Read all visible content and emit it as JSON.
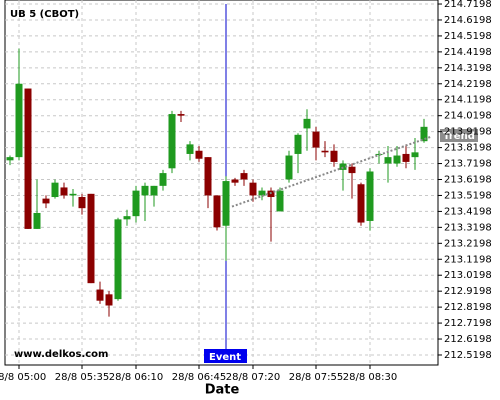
{
  "chart_data": {
    "type": "candlestick",
    "title": "UB 5 (CBOT)",
    "x_label": "Date",
    "watermark": "www.delkos.com",
    "up_color": "#1f9a1f",
    "down_color": "#8b0000",
    "grid": true,
    "categories": [
      null,
      "28/8 05:00",
      null,
      null,
      null,
      null,
      null,
      null,
      "28/8 05:35",
      null,
      null,
      null,
      null,
      null,
      "28/8 06:10",
      null,
      null,
      null,
      null,
      null,
      null,
      "28/8 06:45",
      null,
      null,
      null,
      null,
      null,
      "28/8 07:20",
      null,
      null,
      null,
      null,
      null,
      null,
      "28/8 07:55",
      null,
      null,
      null,
      null,
      null,
      "28/8 08:30",
      null,
      null,
      null,
      null,
      null,
      null
    ],
    "open": [
      213.74,
      213.76,
      214.19,
      213.31,
      213.5,
      213.51,
      213.57,
      213.52,
      213.51,
      213.53,
      212.93,
      212.9,
      212.87,
      213.37,
      213.39,
      213.52,
      213.52,
      213.58,
      213.69,
      214.03,
      213.78,
      213.8,
      213.76,
      213.52,
      213.33,
      213.62,
      213.66,
      213.6,
      213.52,
      213.55,
      213.42,
      213.62,
      213.78,
      213.94,
      213.92,
      213.8,
      213.8,
      213.68,
      213.7,
      213.59,
      213.36,
      213.78,
      213.72,
      213.72,
      213.78,
      213.76,
      213.86
    ],
    "high": [
      213.77,
      214.44,
      214.19,
      213.62,
      213.52,
      213.62,
      213.6,
      213.56,
      213.53,
      213.53,
      212.98,
      212.92,
      213.38,
      213.43,
      213.58,
      213.6,
      213.58,
      213.68,
      214.05,
      214.05,
      213.86,
      213.83,
      213.76,
      213.52,
      213.64,
      213.63,
      213.68,
      213.62,
      213.57,
      213.57,
      213.57,
      213.8,
      213.91,
      214.06,
      213.95,
      213.86,
      213.84,
      213.74,
      213.72,
      213.6,
      213.69,
      213.8,
      213.83,
      213.83,
      213.84,
      213.88,
      214.0
    ],
    "low": [
      213.71,
      213.74,
      213.31,
      213.31,
      213.44,
      213.5,
      213.5,
      213.45,
      213.4,
      212.97,
      212.84,
      212.76,
      212.86,
      213.33,
      213.35,
      213.36,
      213.45,
      213.55,
      213.66,
      213.98,
      213.74,
      213.73,
      213.44,
      213.3,
      213.11,
      213.58,
      213.58,
      213.48,
      213.49,
      213.23,
      213.42,
      213.6,
      213.66,
      213.8,
      213.74,
      213.76,
      213.7,
      213.55,
      213.5,
      213.33,
      213.3,
      213.72,
      213.6,
      213.7,
      213.69,
      213.68,
      213.85
    ],
    "close": [
      213.76,
      214.22,
      213.31,
      213.41,
      213.47,
      213.6,
      213.52,
      213.53,
      213.44,
      212.97,
      212.86,
      212.83,
      213.37,
      213.39,
      213.55,
      213.58,
      213.58,
      213.66,
      214.03,
      214.02,
      213.84,
      213.75,
      213.52,
      213.32,
      213.61,
      213.6,
      213.62,
      213.52,
      213.55,
      213.51,
      213.55,
      213.77,
      213.9,
      214.0,
      213.82,
      213.79,
      213.73,
      213.72,
      213.66,
      213.35,
      213.67,
      213.78,
      213.76,
      213.77,
      213.73,
      213.79,
      213.95
    ],
    "ylim": [
      212.457,
      214.745
    ],
    "yticks": [
      212.5198,
      212.6198,
      212.7198,
      212.8198,
      212.9198,
      213.0198,
      213.1198,
      213.2198,
      213.3198,
      213.4198,
      213.5198,
      213.6198,
      213.7198,
      213.8198,
      213.9198,
      214.0198,
      214.1198,
      214.2198,
      214.3198,
      214.4198,
      214.5198,
      214.6198,
      214.7198
    ],
    "event": {
      "label": "Event"
    },
    "trend": {
      "label": "Trend",
      "from": 213.45,
      "to": 213.89
    }
  }
}
